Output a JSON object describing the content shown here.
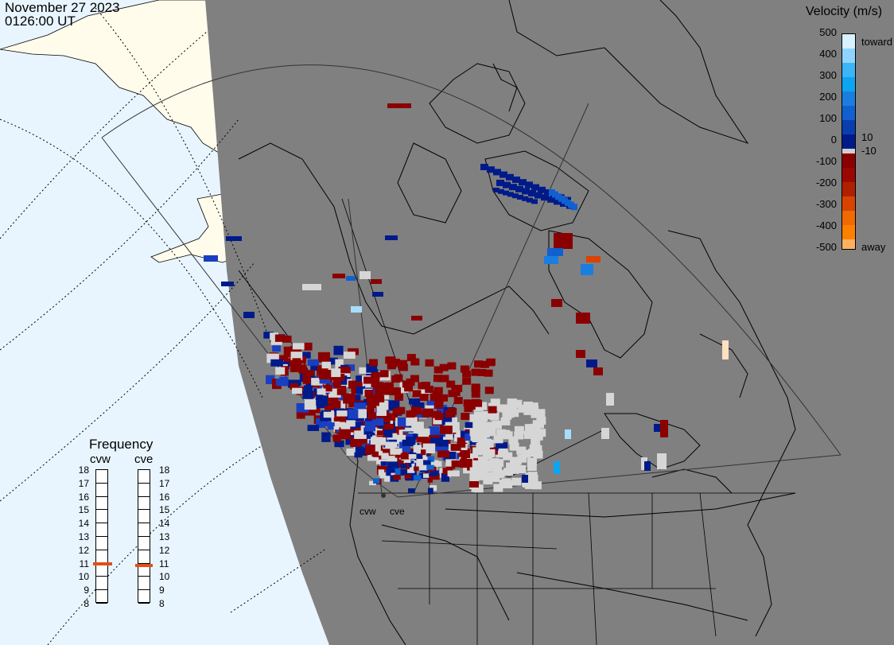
{
  "header": {
    "date": "November 27 2023",
    "time": "0126:00 UT"
  },
  "colorbar": {
    "title": "Velocity (m/s)",
    "ticks": [
      "500",
      "400",
      "300",
      "200",
      "100",
      "0",
      "-100",
      "-200",
      "-300",
      "-400",
      "-500"
    ],
    "label_pos": [
      "10",
      "-10"
    ],
    "toward_label": "toward",
    "away_label": "away",
    "colors": {
      "toward_max": "#d8f0ff",
      "toward_high": "#0ea5f0",
      "toward_mid": "#1060d0",
      "toward_low": "#001a8a",
      "away_low": "#8a0000",
      "away_mid": "#b02000",
      "away_high": "#ff8000",
      "away_max": "#ffe0c0",
      "zero_band": "#d0d0d0"
    }
  },
  "frequency": {
    "title": "Frequency",
    "radars": [
      "cvw",
      "cve"
    ],
    "scale": [
      "18",
      "17",
      "16",
      "15",
      "14",
      "13",
      "12",
      "11",
      "10",
      "9",
      "8"
    ],
    "selected_mhz": [
      10.9,
      10.8
    ],
    "marker_color": "#e0501a"
  },
  "map": {
    "radar_sites": [
      "cvw",
      "cve"
    ],
    "colors": {
      "night": "#808080",
      "ocean_day": "#e8f5ff",
      "land_day": "#fffcec",
      "coast": "#000000",
      "grid": "#2a2a2a",
      "ground_scatter": "#d6d6d6"
    }
  }
}
